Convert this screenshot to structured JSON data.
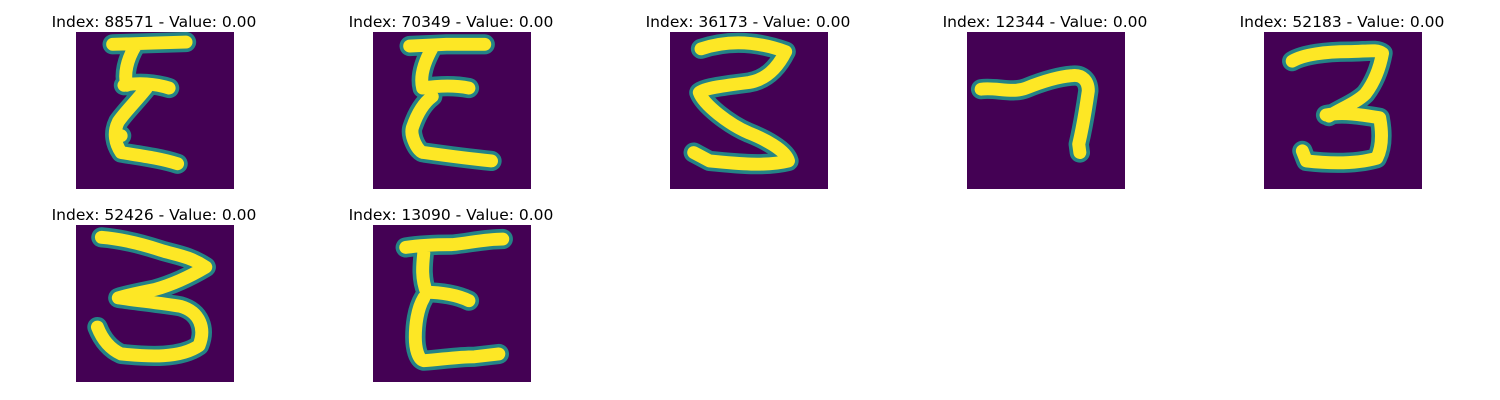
{
  "chart_data": {
    "type": "image_grid",
    "colormap": "viridis",
    "background_color": "#440154",
    "stroke_color": "#fde725",
    "edge_color": "#21918c",
    "panels": [
      {
        "title": "Index: 88571 - Value: 0.00",
        "index": 88571,
        "value": 0.0,
        "glyph": "E"
      },
      {
        "title": "Index: 70349 - Value: 0.00",
        "index": 70349,
        "value": 0.0,
        "glyph": "E"
      },
      {
        "title": "Index: 36173 - Value: 0.00",
        "index": 36173,
        "value": 0.0,
        "glyph": "3"
      },
      {
        "title": "Index: 12344 - Value: 0.00",
        "index": 12344,
        "value": 0.0,
        "glyph": "7"
      },
      {
        "title": "Index: 52183 - Value: 0.00",
        "index": 52183,
        "value": 0.0,
        "glyph": "3"
      },
      {
        "title": "Index: 52426 - Value: 0.00",
        "index": 52426,
        "value": 0.0,
        "glyph": "3"
      },
      {
        "title": "Index: 13090 - Value: 0.00",
        "index": 13090,
        "value": 0.0,
        "glyph": "E"
      }
    ]
  }
}
